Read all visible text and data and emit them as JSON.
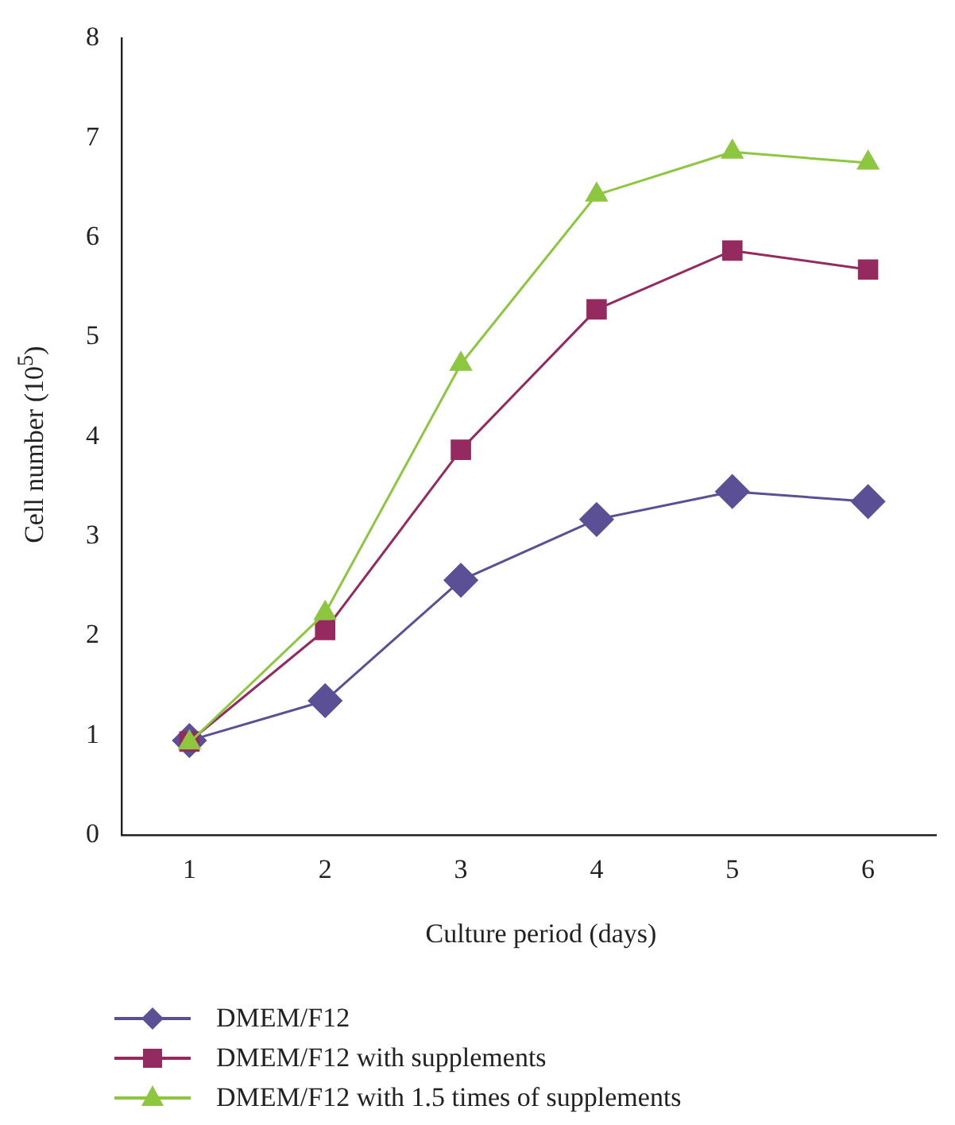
{
  "chart_data": {
    "type": "line",
    "xlabel": "Culture period (days)",
    "ylabel": "Cell number (10$^{5}$)",
    "categories": [
      "1",
      "2",
      "3",
      "4",
      "5",
      "6"
    ],
    "series": [
      {
        "name": "DMEM/F12",
        "color": "#5b4f96",
        "marker": "diamond",
        "values": [
          0.95,
          1.35,
          2.56,
          3.17,
          3.45,
          3.35
        ]
      },
      {
        "name": "DMEM/F12 with supplements",
        "color": "#942a5f",
        "marker": "square",
        "values": [
          0.94,
          2.06,
          3.87,
          5.28,
          5.87,
          5.68
        ]
      },
      {
        "name": "DMEM/F12 with 1.5 times of supplements",
        "color": "#8dc63f",
        "marker": "triangle",
        "values": [
          0.93,
          2.23,
          4.73,
          6.43,
          6.86,
          6.75
        ]
      }
    ],
    "ylim": [
      0,
      8
    ],
    "yticks": [
      0,
      1,
      2,
      3,
      4,
      5,
      6,
      7,
      8
    ],
    "grid": false,
    "legend": "bottom left"
  }
}
